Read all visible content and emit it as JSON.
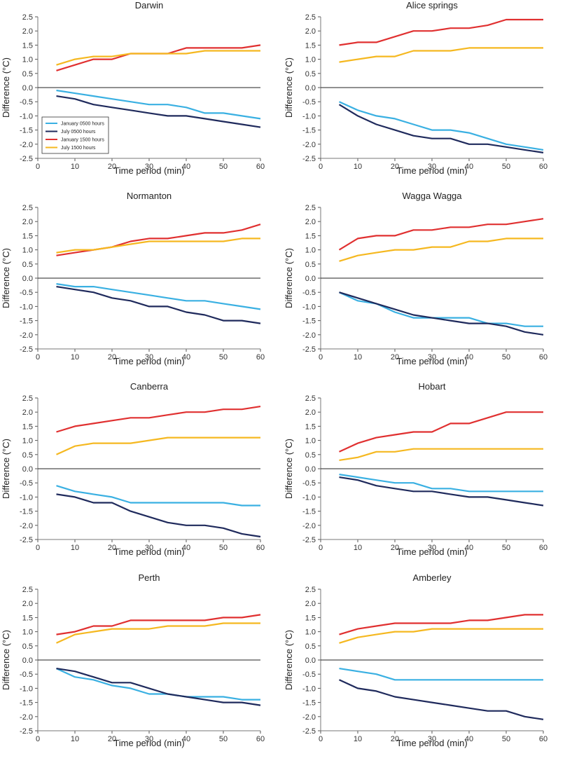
{
  "figure": {
    "legend": [
      {
        "label": "January 0500 hours",
        "color": "#3ab0e2"
      },
      {
        "label": "July 0500 hours",
        "color": "#1f2a5c"
      },
      {
        "label": "January 1500 hours",
        "color": "#e03030"
      },
      {
        "label": "July 1500 hours",
        "color": "#f5b820"
      }
    ],
    "legend_placement": "in first panel, lower-left"
  },
  "chart_data": [
    {
      "type": "line",
      "title": "Darwin",
      "xlabel": "Time period (min)",
      "ylabel": "Difference (°C)",
      "xlim": [
        0,
        60
      ],
      "ylim": [
        -2.5,
        2.5
      ],
      "xticks": [
        0,
        10,
        20,
        30,
        40,
        50,
        60
      ],
      "yticks": [
        -2.5,
        -2.0,
        -1.5,
        -1.0,
        -0.5,
        0.0,
        0.5,
        1.0,
        1.5,
        2.0,
        2.5
      ],
      "ytick_labels": [
        "-2.5",
        "-2.0",
        "-1.5",
        "-1.0",
        "-0.5",
        "0.0",
        "0.5",
        "1.0",
        "1.5",
        "2.0",
        "2.5"
      ],
      "x": [
        5,
        10,
        15,
        20,
        25,
        30,
        35,
        40,
        45,
        50,
        55,
        60
      ],
      "zero_line": true,
      "show_legend": true,
      "series": [
        {
          "name": "January 0500 hours",
          "color": "#3ab0e2",
          "values": [
            -0.1,
            -0.2,
            -0.3,
            -0.4,
            -0.5,
            -0.6,
            -0.6,
            -0.7,
            -0.9,
            -0.9,
            -1.0,
            -1.1
          ]
        },
        {
          "name": "July 0500 hours",
          "color": "#1f2a5c",
          "values": [
            -0.3,
            -0.4,
            -0.6,
            -0.7,
            -0.8,
            -0.9,
            -1.0,
            -1.0,
            -1.1,
            -1.2,
            -1.3,
            -1.4
          ]
        },
        {
          "name": "January 1500 hours",
          "color": "#e03030",
          "values": [
            0.6,
            0.8,
            1.0,
            1.0,
            1.2,
            1.2,
            1.2,
            1.4,
            1.4,
            1.4,
            1.4,
            1.5
          ]
        },
        {
          "name": "July 1500 hours",
          "color": "#f5b820",
          "values": [
            0.8,
            1.0,
            1.1,
            1.1,
            1.2,
            1.2,
            1.2,
            1.2,
            1.3,
            1.3,
            1.3,
            1.3
          ]
        }
      ]
    },
    {
      "type": "line",
      "title": "Alice springs",
      "xlabel": "Time period (min)",
      "ylabel": "Difference (°C)",
      "xlim": [
        0,
        60
      ],
      "ylim": [
        -2.5,
        2.5
      ],
      "xticks": [
        0,
        10,
        20,
        30,
        40,
        50,
        60
      ],
      "yticks": [
        -2.5,
        -2.0,
        -1.5,
        -1.0,
        -0.5,
        0.0,
        0.5,
        1.0,
        1.5,
        2.0,
        2.5
      ],
      "ytick_labels": [
        "-2.5",
        "-2.0",
        "-1.5",
        "-1.0",
        "-0.5",
        "0.0",
        "0.5",
        "1.0",
        "1.5",
        "2.0",
        "2.5"
      ],
      "x": [
        5,
        10,
        15,
        20,
        25,
        30,
        35,
        40,
        45,
        50,
        55,
        60
      ],
      "zero_line": true,
      "show_legend": false,
      "series": [
        {
          "name": "January 0500 hours",
          "color": "#3ab0e2",
          "values": [
            -0.5,
            -0.8,
            -1.0,
            -1.1,
            -1.3,
            -1.5,
            -1.5,
            -1.6,
            -1.8,
            -2.0,
            -2.1,
            -2.2
          ]
        },
        {
          "name": "July 0500 hours",
          "color": "#1f2a5c",
          "values": [
            -0.6,
            -1.0,
            -1.3,
            -1.5,
            -1.7,
            -1.8,
            -1.8,
            -2.0,
            -2.0,
            -2.1,
            -2.2,
            -2.3
          ]
        },
        {
          "name": "January 1500 hours",
          "color": "#e03030",
          "values": [
            1.5,
            1.6,
            1.6,
            1.8,
            2.0,
            2.0,
            2.1,
            2.1,
            2.2,
            2.4,
            2.4,
            2.4
          ]
        },
        {
          "name": "July 1500 hours",
          "color": "#f5b820",
          "values": [
            0.9,
            1.0,
            1.1,
            1.1,
            1.3,
            1.3,
            1.3,
            1.4,
            1.4,
            1.4,
            1.4,
            1.4
          ]
        }
      ]
    },
    {
      "type": "line",
      "title": "Normanton",
      "xlabel": "Time period (min)",
      "ylabel": "Difference (°C)",
      "xlim": [
        0,
        60
      ],
      "ylim": [
        -2.5,
        2.5
      ],
      "xticks": [
        0,
        10,
        20,
        30,
        40,
        50,
        60
      ],
      "yticks": [
        -2.5,
        -2.0,
        -1.5,
        -1.0,
        -0.5,
        0.0,
        0.5,
        1.0,
        1.5,
        2.0,
        2.5
      ],
      "ytick_labels": [
        "-2.5",
        "-2.0",
        "-1.5",
        "-1.0",
        "-0.5",
        "0.0",
        "0.5",
        "1.0",
        "1.5",
        "2.0",
        "2.5"
      ],
      "x": [
        5,
        10,
        15,
        20,
        25,
        30,
        35,
        40,
        45,
        50,
        55,
        60
      ],
      "zero_line": true,
      "show_legend": false,
      "series": [
        {
          "name": "January 0500 hours",
          "color": "#3ab0e2",
          "values": [
            -0.2,
            -0.3,
            -0.3,
            -0.4,
            -0.5,
            -0.6,
            -0.7,
            -0.8,
            -0.8,
            -0.9,
            -1.0,
            -1.1
          ]
        },
        {
          "name": "July 0500 hours",
          "color": "#1f2a5c",
          "values": [
            -0.3,
            -0.4,
            -0.5,
            -0.7,
            -0.8,
            -1.0,
            -1.0,
            -1.2,
            -1.3,
            -1.5,
            -1.5,
            -1.6
          ]
        },
        {
          "name": "January 1500 hours",
          "color": "#e03030",
          "values": [
            0.8,
            0.9,
            1.0,
            1.1,
            1.3,
            1.4,
            1.4,
            1.5,
            1.6,
            1.6,
            1.7,
            1.9
          ]
        },
        {
          "name": "July 1500 hours",
          "color": "#f5b820",
          "values": [
            0.9,
            1.0,
            1.0,
            1.1,
            1.2,
            1.3,
            1.3,
            1.3,
            1.3,
            1.3,
            1.4,
            1.4
          ]
        }
      ]
    },
    {
      "type": "line",
      "title": "Wagga Wagga",
      "xlabel": "Time period (min)",
      "ylabel": "Difference (°C)",
      "xlim": [
        0,
        60
      ],
      "ylim": [
        -2.5,
        2.5
      ],
      "xticks": [
        0,
        10,
        20,
        30,
        40,
        50,
        60
      ],
      "yticks": [
        -2.5,
        -2.0,
        -1.5,
        -1.0,
        -0.5,
        0.0,
        0.5,
        1.0,
        1.5,
        2.0,
        2.5
      ],
      "ytick_labels": [
        "-2.5",
        "-2.0",
        "-1.5",
        "-1.0",
        "-0.5",
        "0.0",
        "0.5",
        "1.0",
        "1.5",
        "2.0",
        "2.5"
      ],
      "x": [
        5,
        10,
        15,
        20,
        25,
        30,
        35,
        40,
        45,
        50,
        55,
        60
      ],
      "zero_line": true,
      "show_legend": false,
      "series": [
        {
          "name": "January 0500 hours",
          "color": "#3ab0e2",
          "values": [
            -0.5,
            -0.8,
            -0.9,
            -1.2,
            -1.4,
            -1.4,
            -1.4,
            -1.4,
            -1.6,
            -1.6,
            -1.7,
            -1.7
          ]
        },
        {
          "name": "July 0500 hours",
          "color": "#1f2a5c",
          "values": [
            -0.5,
            -0.7,
            -0.9,
            -1.1,
            -1.3,
            -1.4,
            -1.5,
            -1.6,
            -1.6,
            -1.7,
            -1.9,
            -2.0
          ]
        },
        {
          "name": "January 1500 hours",
          "color": "#e03030",
          "values": [
            1.0,
            1.4,
            1.5,
            1.5,
            1.7,
            1.7,
            1.8,
            1.8,
            1.9,
            1.9,
            2.0,
            2.1
          ]
        },
        {
          "name": "July 1500 hours",
          "color": "#f5b820",
          "values": [
            0.6,
            0.8,
            0.9,
            1.0,
            1.0,
            1.1,
            1.1,
            1.3,
            1.3,
            1.4,
            1.4,
            1.4
          ]
        }
      ]
    },
    {
      "type": "line",
      "title": "Canberra",
      "xlabel": "Time period (min)",
      "ylabel": "Difference (°C)",
      "xlim": [
        0,
        60
      ],
      "ylim": [
        -2.5,
        2.5
      ],
      "xticks": [
        0,
        10,
        20,
        30,
        40,
        50,
        60
      ],
      "yticks": [
        -2.5,
        -2.0,
        -1.5,
        -1.0,
        -0.5,
        0.0,
        0.5,
        1.0,
        1.5,
        2.0,
        2.5
      ],
      "ytick_labels": [
        "-2.5",
        "-2.0",
        "-1.5",
        "-1.0",
        "-0.5",
        "0.0",
        "0.5",
        "1.0",
        "1.5",
        "2.0",
        "2.5"
      ],
      "x": [
        5,
        10,
        15,
        20,
        25,
        30,
        35,
        40,
        45,
        50,
        55,
        60
      ],
      "zero_line": true,
      "show_legend": false,
      "series": [
        {
          "name": "January 0500 hours",
          "color": "#3ab0e2",
          "values": [
            -0.6,
            -0.8,
            -0.9,
            -1.0,
            -1.2,
            -1.2,
            -1.2,
            -1.2,
            -1.2,
            -1.2,
            -1.3,
            -1.3
          ]
        },
        {
          "name": "July 0500 hours",
          "color": "#1f2a5c",
          "values": [
            -0.9,
            -1.0,
            -1.2,
            -1.2,
            -1.5,
            -1.7,
            -1.9,
            -2.0,
            -2.0,
            -2.1,
            -2.3,
            -2.4
          ]
        },
        {
          "name": "January 1500 hours",
          "color": "#e03030",
          "values": [
            1.3,
            1.5,
            1.6,
            1.7,
            1.8,
            1.8,
            1.9,
            2.0,
            2.0,
            2.1,
            2.1,
            2.2
          ]
        },
        {
          "name": "July 1500 hours",
          "color": "#f5b820",
          "values": [
            0.5,
            0.8,
            0.9,
            0.9,
            0.9,
            1.0,
            1.1,
            1.1,
            1.1,
            1.1,
            1.1,
            1.1
          ]
        }
      ]
    },
    {
      "type": "line",
      "title": "Hobart",
      "xlabel": "Time period (min)",
      "ylabel": "Difference (°C)",
      "xlim": [
        0,
        60
      ],
      "ylim": [
        -2.5,
        2.5
      ],
      "xticks": [
        0,
        10,
        20,
        30,
        40,
        50,
        60
      ],
      "yticks": [
        -2.5,
        -2.0,
        -1.5,
        -1.0,
        -0.5,
        0.0,
        0.5,
        1.0,
        1.5,
        2.0,
        2.5
      ],
      "ytick_labels": [
        "-2.5",
        "-2.0",
        "-1.5",
        "-1.0",
        "-0.5",
        "0.0",
        "0.5",
        "1.0",
        "1.5",
        "2.0",
        "2.5"
      ],
      "x": [
        5,
        10,
        15,
        20,
        25,
        30,
        35,
        40,
        45,
        50,
        55,
        60
      ],
      "zero_line": true,
      "show_legend": false,
      "series": [
        {
          "name": "January 0500 hours",
          "color": "#3ab0e2",
          "values": [
            -0.2,
            -0.3,
            -0.4,
            -0.5,
            -0.5,
            -0.7,
            -0.7,
            -0.8,
            -0.8,
            -0.8,
            -0.8,
            -0.8
          ]
        },
        {
          "name": "July 0500 hours",
          "color": "#1f2a5c",
          "values": [
            -0.3,
            -0.4,
            -0.6,
            -0.7,
            -0.8,
            -0.8,
            -0.9,
            -1.0,
            -1.0,
            -1.1,
            -1.2,
            -1.3
          ]
        },
        {
          "name": "January 1500 hours",
          "color": "#e03030",
          "values": [
            0.6,
            0.9,
            1.1,
            1.2,
            1.3,
            1.3,
            1.6,
            1.6,
            1.8,
            2.0,
            2.0,
            2.0
          ]
        },
        {
          "name": "July 1500 hours",
          "color": "#f5b820",
          "values": [
            0.3,
            0.4,
            0.6,
            0.6,
            0.7,
            0.7,
            0.7,
            0.7,
            0.7,
            0.7,
            0.7,
            0.7
          ]
        }
      ]
    },
    {
      "type": "line",
      "title": "Perth",
      "xlabel": "Time period (min)",
      "ylabel": "Difference (°C)",
      "xlim": [
        0,
        60
      ],
      "ylim": [
        -2.5,
        2.5
      ],
      "xticks": [
        0,
        10,
        20,
        30,
        40,
        50,
        60
      ],
      "yticks": [
        -2.5,
        -2.0,
        -1.5,
        -1.0,
        -0.5,
        0.0,
        0.5,
        1.0,
        1.5,
        2.0,
        2.5
      ],
      "ytick_labels": [
        "-2.5",
        "-2.0",
        "-1.5",
        "-1.0",
        "-0.5",
        "0.0",
        "0.5",
        "1.0",
        "1.5",
        "2.0",
        "2.5"
      ],
      "x": [
        5,
        10,
        15,
        20,
        25,
        30,
        35,
        40,
        45,
        50,
        55,
        60
      ],
      "zero_line": true,
      "show_legend": false,
      "series": [
        {
          "name": "January 0500 hours",
          "color": "#3ab0e2",
          "values": [
            -0.3,
            -0.6,
            -0.7,
            -0.9,
            -1.0,
            -1.2,
            -1.2,
            -1.3,
            -1.3,
            -1.3,
            -1.4,
            -1.4
          ]
        },
        {
          "name": "July 0500 hours",
          "color": "#1f2a5c",
          "values": [
            -0.3,
            -0.4,
            -0.6,
            -0.8,
            -0.8,
            -1.0,
            -1.2,
            -1.3,
            -1.4,
            -1.5,
            -1.5,
            -1.6
          ]
        },
        {
          "name": "January 1500 hours",
          "color": "#e03030",
          "values": [
            0.9,
            1.0,
            1.2,
            1.2,
            1.4,
            1.4,
            1.4,
            1.4,
            1.4,
            1.5,
            1.5,
            1.6
          ]
        },
        {
          "name": "July 1500 hours",
          "color": "#f5b820",
          "values": [
            0.6,
            0.9,
            1.0,
            1.1,
            1.1,
            1.1,
            1.2,
            1.2,
            1.2,
            1.3,
            1.3,
            1.3
          ]
        }
      ]
    },
    {
      "type": "line",
      "title": "Amberley",
      "xlabel": "Time period (min)",
      "ylabel": "Difference (°C)",
      "xlim": [
        0,
        60
      ],
      "ylim": [
        -2.5,
        2.5
      ],
      "xticks": [
        0,
        10,
        20,
        30,
        40,
        50,
        60
      ],
      "yticks": [
        -2.5,
        -2.0,
        -1.5,
        -1.0,
        -0.5,
        0.0,
        0.5,
        1.0,
        1.5,
        2.0,
        2.5
      ],
      "ytick_labels": [
        "-2.5",
        "-2.0",
        "-1.5",
        "-1.0",
        "-0.5",
        "0.0",
        "0.5",
        "1.0",
        "1.5",
        "2.0",
        "2.5"
      ],
      "x": [
        5,
        10,
        15,
        20,
        25,
        30,
        35,
        40,
        45,
        50,
        55,
        60
      ],
      "zero_line": true,
      "show_legend": false,
      "series": [
        {
          "name": "January 0500 hours",
          "color": "#3ab0e2",
          "values": [
            -0.3,
            -0.4,
            -0.5,
            -0.7,
            -0.7,
            -0.7,
            -0.7,
            -0.7,
            -0.7,
            -0.7,
            -0.7,
            -0.7
          ]
        },
        {
          "name": "July 0500 hours",
          "color": "#1f2a5c",
          "values": [
            -0.7,
            -1.0,
            -1.1,
            -1.3,
            -1.4,
            -1.5,
            -1.6,
            -1.7,
            -1.8,
            -1.8,
            -2.0,
            -2.1
          ]
        },
        {
          "name": "January 1500 hours",
          "color": "#e03030",
          "values": [
            0.9,
            1.1,
            1.2,
            1.3,
            1.3,
            1.3,
            1.3,
            1.4,
            1.4,
            1.5,
            1.6,
            1.6
          ]
        },
        {
          "name": "July 1500 hours",
          "color": "#f5b820",
          "values": [
            0.6,
            0.8,
            0.9,
            1.0,
            1.0,
            1.1,
            1.1,
            1.1,
            1.1,
            1.1,
            1.1,
            1.1
          ]
        }
      ]
    }
  ]
}
